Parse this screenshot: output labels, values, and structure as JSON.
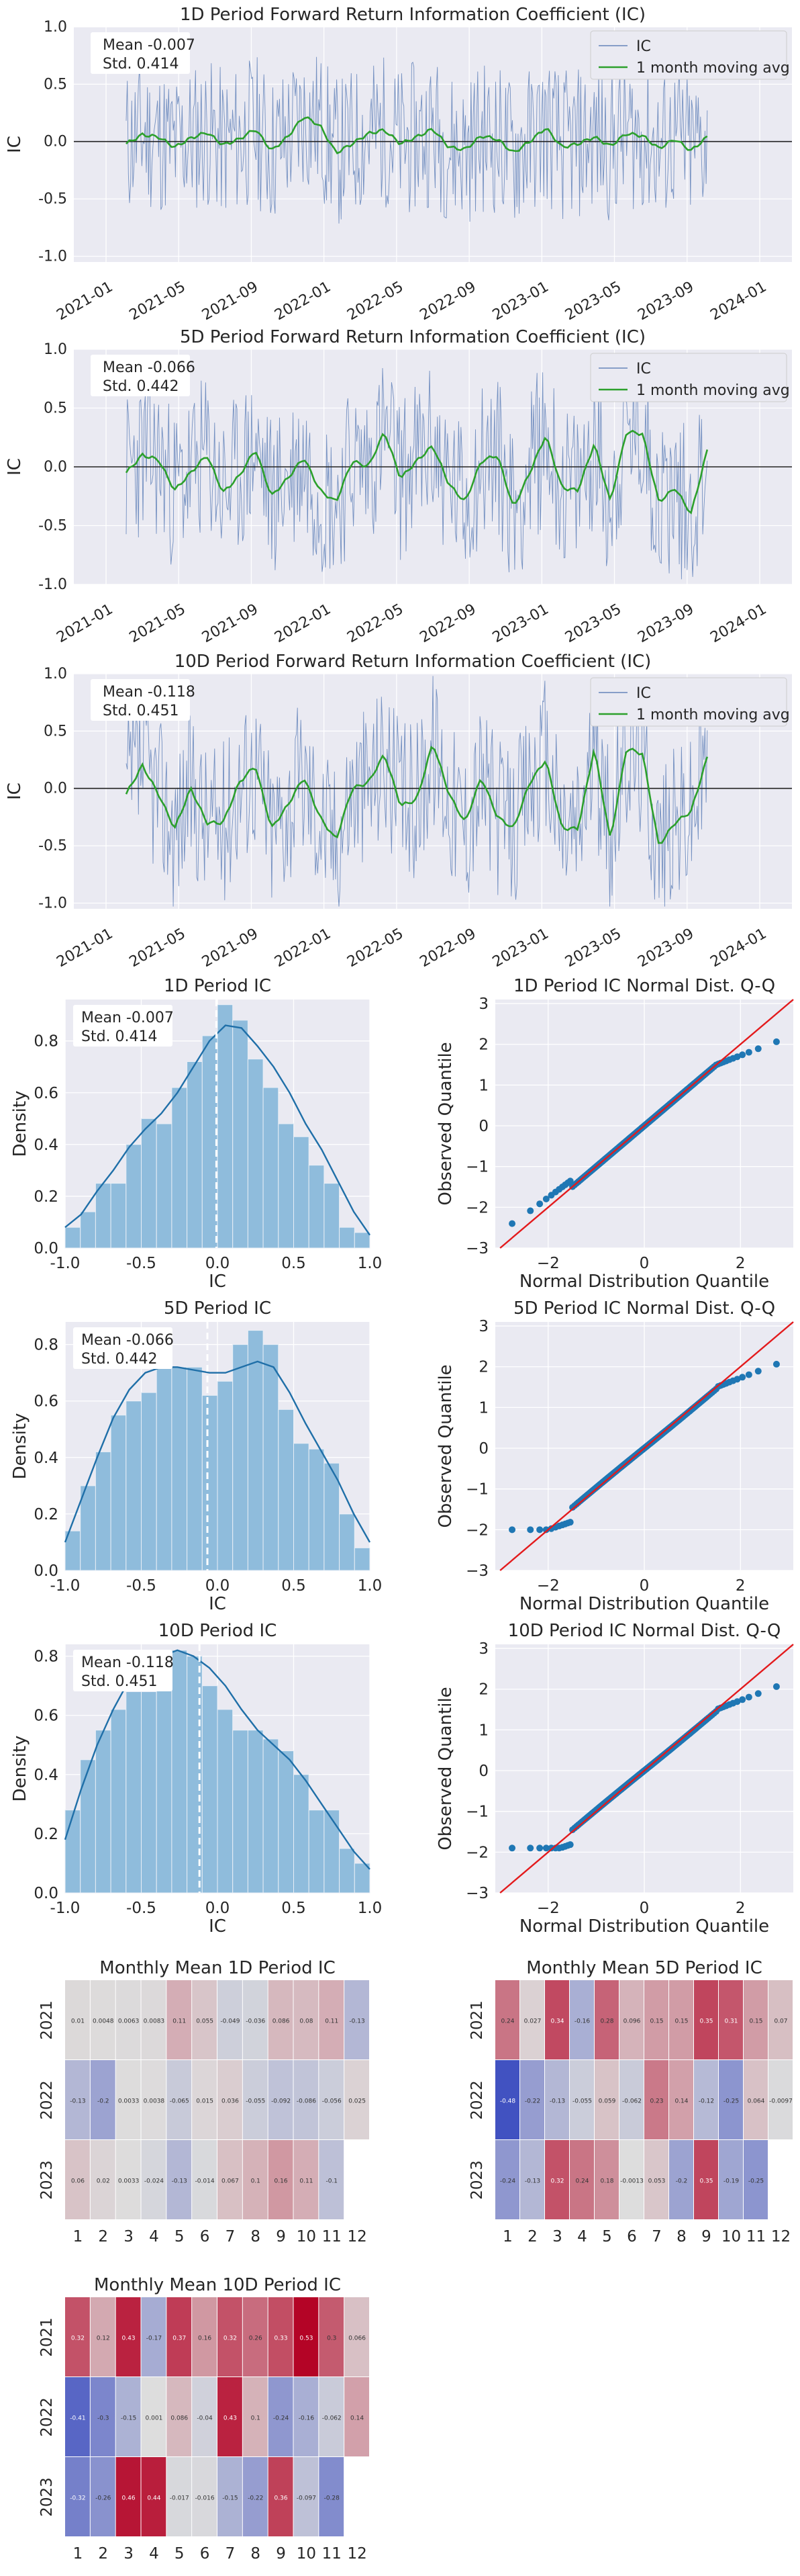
{
  "chart_data": [
    {
      "type": "line",
      "title": "1D Period Forward Return Information Coefficient (IC)",
      "ylabel": "IC",
      "xlabel": "",
      "x_ticks": [
        "2021-01",
        "2021-05",
        "2021-09",
        "2022-01",
        "2022-05",
        "2022-09",
        "2023-01",
        "2023-05",
        "2023-09",
        "2024-01"
      ],
      "ylim": [
        -1.05,
        1.0
      ],
      "y_ticks": [
        "-1.0",
        "-0.5",
        "0.0",
        "0.5",
        "1.0"
      ],
      "stats": [
        "Mean -0.007",
        "Std. 0.414"
      ],
      "legend": [
        "IC",
        "1 month moving avg"
      ],
      "legend_position": "top-right",
      "grid": true,
      "series": [
        {
          "name": "IC",
          "seed": 11,
          "amp": 0.42,
          "mean": -0.007
        },
        {
          "name": "1 month moving avg",
          "moving_avg": [
            -0.02,
            0.06,
            0.04,
            -0.05,
            0.03,
            0.08,
            -0.03,
            0.02,
            0.11,
            -0.08,
            0.04,
            0.22,
            0.14,
            -0.1,
            -0.02,
            0.07,
            0.1,
            -0.02,
            0.04,
            0.11,
            -0.05,
            -0.07,
            0.05,
            0.02,
            -0.1,
            0.0,
            0.12,
            -0.05,
            -0.02,
            0.04,
            -0.04,
            0.07,
            0.05,
            -0.06,
            0.02,
            -0.08,
            0.04
          ]
        }
      ]
    },
    {
      "type": "line",
      "title": "5D Period Forward Return Information Coefficient (IC)",
      "ylabel": "IC",
      "xlabel": "",
      "x_ticks": [
        "2021-01",
        "2021-05",
        "2021-09",
        "2022-01",
        "2022-05",
        "2022-09",
        "2023-01",
        "2023-05",
        "2023-09",
        "2024-01"
      ],
      "ylim": [
        -1.0,
        1.0
      ],
      "y_ticks": [
        "-1.0",
        "-0.5",
        "0.0",
        "0.5",
        "1.0"
      ],
      "stats": [
        "Mean -0.066",
        "Std. 0.442"
      ],
      "legend": [
        "IC",
        "1 month moving avg"
      ],
      "legend_position": "top-right",
      "grid": true,
      "series": [
        {
          "name": "IC",
          "seed": 23,
          "amp": 0.44,
          "mean": -0.066
        },
        {
          "name": "1 month moving avg",
          "moving_avg": [
            -0.05,
            0.1,
            0.06,
            -0.2,
            -0.05,
            0.1,
            -0.22,
            -0.08,
            0.15,
            -0.25,
            -0.1,
            0.08,
            -0.2,
            -0.3,
            0.05,
            0.0,
            0.3,
            -0.1,
            0.05,
            0.18,
            -0.15,
            -0.3,
            0.05,
            0.1,
            -0.35,
            -0.05,
            0.27,
            -0.18,
            -0.2,
            0.2,
            -0.3,
            0.3,
            0.28,
            -0.3,
            -0.18,
            -0.4,
            0.14
          ]
        }
      ]
    },
    {
      "type": "line",
      "title": "10D Period Forward Return Information Coefficient (IC)",
      "ylabel": "IC",
      "xlabel": "",
      "x_ticks": [
        "2021-01",
        "2021-05",
        "2021-09",
        "2022-01",
        "2022-05",
        "2022-09",
        "2023-01",
        "2023-05",
        "2023-09",
        "2024-01"
      ],
      "ylim": [
        -1.05,
        1.0
      ],
      "y_ticks": [
        "-1.0",
        "-0.5",
        "0.0",
        "0.5",
        "1.0"
      ],
      "stats": [
        "Mean -0.118",
        "Std. 0.451"
      ],
      "legend": [
        "IC",
        "1 month moving avg"
      ],
      "legend_position": "top-right",
      "grid": true,
      "series": [
        {
          "name": "IC",
          "seed": 37,
          "amp": 0.45,
          "mean": -0.118
        },
        {
          "name": "1 month moving avg",
          "moving_avg": [
            -0.05,
            0.2,
            -0.05,
            -0.35,
            0.0,
            -0.3,
            -0.3,
            0.05,
            0.2,
            -0.35,
            -0.15,
            0.1,
            -0.25,
            -0.45,
            0.0,
            0.05,
            0.3,
            -0.15,
            -0.1,
            0.4,
            -0.05,
            -0.3,
            0.1,
            -0.25,
            -0.35,
            0.05,
            0.25,
            -0.35,
            -0.35,
            0.35,
            -0.45,
            0.35,
            0.3,
            -0.5,
            -0.3,
            -0.2,
            0.27
          ]
        }
      ]
    },
    {
      "type": "histogram",
      "title": "1D Period IC",
      "xlabel": "IC",
      "ylabel": "Density",
      "xlim": [
        -1.0,
        1.0
      ],
      "x_ticks": [
        "-1.0",
        "-0.5",
        "0.0",
        "0.5",
        "1.0"
      ],
      "ylim": [
        0,
        0.96
      ],
      "y_ticks": [
        "0.0",
        "0.2",
        "0.4",
        "0.6",
        "0.8"
      ],
      "stats": [
        "Mean -0.007",
        "Std. 0.414"
      ],
      "mean_line": -0.007,
      "bins": [
        -1.0,
        -0.9,
        -0.8,
        -0.7,
        -0.6,
        -0.5,
        -0.4,
        -0.3,
        -0.2,
        -0.1,
        0.0,
        0.1,
        0.2,
        0.3,
        0.4,
        0.5,
        0.6,
        0.7,
        0.8,
        0.9
      ],
      "densities": [
        0.08,
        0.14,
        0.25,
        0.25,
        0.4,
        0.5,
        0.48,
        0.62,
        0.72,
        0.82,
        0.94,
        0.88,
        0.73,
        0.62,
        0.48,
        0.43,
        0.32,
        0.25,
        0.08,
        0.06
      ],
      "kde": [
        0.08,
        0.13,
        0.22,
        0.3,
        0.39,
        0.46,
        0.52,
        0.6,
        0.7,
        0.8,
        0.86,
        0.85,
        0.78,
        0.7,
        0.6,
        0.48,
        0.38,
        0.26,
        0.14,
        0.05
      ]
    },
    {
      "type": "histogram",
      "title": "5D Period IC",
      "xlabel": "IC",
      "ylabel": "Density",
      "xlim": [
        -1.0,
        1.0
      ],
      "x_ticks": [
        "-1.0",
        "-0.5",
        "0.0",
        "0.5",
        "1.0"
      ],
      "ylim": [
        0,
        0.88
      ],
      "y_ticks": [
        "0.0",
        "0.2",
        "0.4",
        "0.6",
        "0.8"
      ],
      "stats": [
        "Mean -0.066",
        "Std. 0.442"
      ],
      "mean_line": -0.066,
      "bins": [
        -1.0,
        -0.9,
        -0.8,
        -0.7,
        -0.6,
        -0.5,
        -0.4,
        -0.3,
        -0.2,
        -0.1,
        0.0,
        0.1,
        0.2,
        0.3,
        0.4,
        0.5,
        0.6,
        0.7,
        0.8,
        0.9
      ],
      "densities": [
        0.14,
        0.3,
        0.42,
        0.55,
        0.6,
        0.63,
        0.75,
        0.72,
        0.72,
        0.62,
        0.67,
        0.8,
        0.85,
        0.8,
        0.57,
        0.45,
        0.43,
        0.38,
        0.2,
        0.08
      ],
      "kde": [
        0.1,
        0.25,
        0.4,
        0.54,
        0.64,
        0.7,
        0.72,
        0.72,
        0.71,
        0.7,
        0.7,
        0.72,
        0.74,
        0.72,
        0.63,
        0.52,
        0.42,
        0.32,
        0.2,
        0.1
      ]
    },
    {
      "type": "histogram",
      "title": "10D Period IC",
      "xlabel": "IC",
      "ylabel": "Density",
      "xlim": [
        -1.0,
        1.0
      ],
      "x_ticks": [
        "-1.0",
        "-0.5",
        "0.0",
        "0.5",
        "1.0"
      ],
      "ylim": [
        0,
        0.84
      ],
      "y_ticks": [
        "0.0",
        "0.2",
        "0.4",
        "0.6",
        "0.8"
      ],
      "stats": [
        "Mean -0.118",
        "Std. 0.451"
      ],
      "mean_line": -0.118,
      "bins": [
        -1.0,
        -0.9,
        -0.8,
        -0.7,
        -0.6,
        -0.5,
        -0.4,
        -0.3,
        -0.2,
        -0.1,
        0.0,
        0.1,
        0.2,
        0.3,
        0.4,
        0.5,
        0.6,
        0.7,
        0.8,
        0.9
      ],
      "densities": [
        0.28,
        0.45,
        0.55,
        0.62,
        0.68,
        0.68,
        0.7,
        0.82,
        0.8,
        0.7,
        0.62,
        0.55,
        0.55,
        0.52,
        0.48,
        0.4,
        0.28,
        0.28,
        0.15,
        0.1
      ],
      "kde": [
        0.18,
        0.35,
        0.5,
        0.62,
        0.72,
        0.78,
        0.8,
        0.82,
        0.8,
        0.76,
        0.7,
        0.62,
        0.55,
        0.5,
        0.45,
        0.38,
        0.3,
        0.22,
        0.14,
        0.08
      ]
    },
    {
      "type": "scatter",
      "title": "1D Period IC Normal Dist. Q-Q",
      "xlabel": "Normal Distribution Quantile",
      "ylabel": "Observed Quantile",
      "xlim": [
        -3.1,
        3.1
      ],
      "x_ticks": [
        "−2",
        "0",
        "2"
      ],
      "ylim": [
        -3.0,
        3.1
      ],
      "y_ticks": [
        "−3",
        "−2",
        "−1",
        "0",
        "1",
        "2",
        "3"
      ],
      "shape": "symmetric",
      "tail_low": -2.4,
      "tail_high": 2.2
    },
    {
      "type": "scatter",
      "title": "5D Period IC Normal Dist. Q-Q",
      "xlabel": "Normal Distribution Quantile",
      "ylabel": "Observed Quantile",
      "xlim": [
        -3.1,
        3.1
      ],
      "x_ticks": [
        "−2",
        "0",
        "2"
      ],
      "ylim": [
        -3.0,
        3.1
      ],
      "y_ticks": [
        "−3",
        "−2",
        "−1",
        "0",
        "1",
        "2",
        "3"
      ],
      "shape": "light",
      "tail_low": -2.0,
      "tail_high": 2.2
    },
    {
      "type": "scatter",
      "title": "10D Period IC Normal Dist. Q-Q",
      "xlabel": "Normal Distribution Quantile",
      "ylabel": "Observed Quantile",
      "xlim": [
        -3.1,
        3.1
      ],
      "x_ticks": [
        "−2",
        "0",
        "2"
      ],
      "ylim": [
        -3.0,
        3.1
      ],
      "y_ticks": [
        "−3",
        "−2",
        "−1",
        "0",
        "1",
        "2",
        "3"
      ],
      "shape": "light",
      "tail_low": -1.9,
      "tail_high": 2.2
    },
    {
      "type": "heatmap",
      "title": "Monthly Mean 1D Period IC",
      "rows": [
        "2021",
        "2022",
        "2023"
      ],
      "cols": [
        "1",
        "2",
        "3",
        "4",
        "5",
        "6",
        "7",
        "8",
        "9",
        "10",
        "11",
        "12"
      ],
      "values": [
        [
          0.01,
          0.0048,
          0.0063,
          0.0083,
          0.11,
          0.055,
          -0.049,
          -0.036,
          0.086,
          0.08,
          0.11,
          -0.13
        ],
        [
          -0.13,
          -0.2,
          0.0033,
          0.0038,
          -0.065,
          0.015,
          0.036,
          -0.055,
          -0.092,
          -0.086,
          -0.056,
          0.025
        ],
        [
          0.06,
          0.02,
          0.0033,
          -0.024,
          -0.13,
          -0.014,
          0.067,
          0.1,
          0.16,
          0.11,
          -0.1,
          null
        ]
      ]
    },
    {
      "type": "heatmap",
      "title": "Monthly Mean 5D Period IC",
      "rows": [
        "2021",
        "2022",
        "2023"
      ],
      "cols": [
        "1",
        "2",
        "3",
        "4",
        "5",
        "6",
        "7",
        "8",
        "9",
        "10",
        "11",
        "12"
      ],
      "values": [
        [
          0.24,
          0.027,
          0.34,
          -0.16,
          0.28,
          0.096,
          0.15,
          0.15,
          0.35,
          0.31,
          0.15,
          0.07
        ],
        [
          -0.48,
          -0.22,
          -0.13,
          -0.055,
          0.059,
          -0.062,
          0.23,
          0.14,
          -0.12,
          -0.25,
          0.064,
          -0.0097
        ],
        [
          -0.24,
          -0.13,
          0.32,
          0.24,
          0.18,
          -0.0013,
          0.053,
          -0.2,
          0.35,
          -0.19,
          -0.25,
          null
        ]
      ]
    },
    {
      "type": "heatmap",
      "title": "Monthly Mean 10D Period IC",
      "rows": [
        "2021",
        "2022",
        "2023"
      ],
      "cols": [
        "1",
        "2",
        "3",
        "4",
        "5",
        "6",
        "7",
        "8",
        "9",
        "10",
        "11",
        "12"
      ],
      "values": [
        [
          0.32,
          0.12,
          0.43,
          -0.17,
          0.37,
          0.16,
          0.32,
          0.26,
          0.33,
          0.53,
          0.3,
          0.066
        ],
        [
          -0.41,
          -0.3,
          -0.15,
          0.001,
          0.086,
          -0.04,
          0.43,
          0.1,
          -0.24,
          -0.16,
          -0.062,
          0.14
        ],
        [
          -0.32,
          -0.26,
          0.46,
          0.44,
          -0.017,
          -0.016,
          -0.15,
          -0.22,
          0.36,
          -0.097,
          -0.28,
          null
        ]
      ]
    }
  ]
}
